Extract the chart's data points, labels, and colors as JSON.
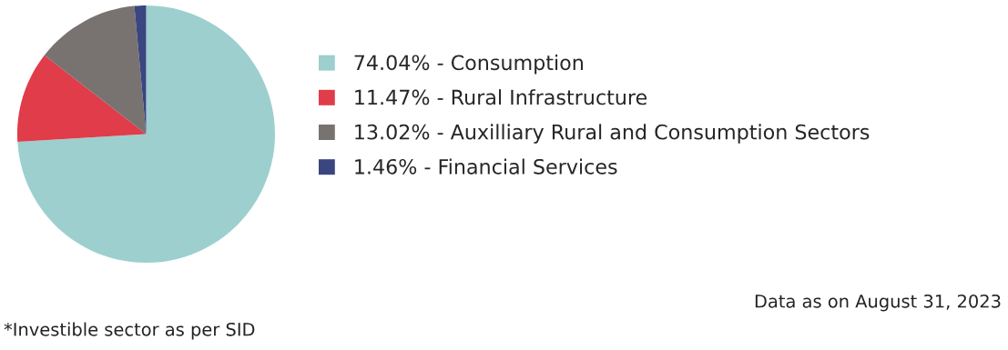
{
  "chart_data": {
    "type": "pie",
    "categories": [
      "74.04% - Consumption",
      "11.47% - Rural Infrastructure",
      "13.02% - Auxilliary Rural and Consumption Sectors",
      "1.46% - Financial Services"
    ],
    "values": [
      74.04,
      11.47,
      13.02,
      1.46
    ],
    "colors": [
      "#9dcfcf",
      "#e03c4a",
      "#787370",
      "#3b4580"
    ],
    "legend": "right",
    "annotations": [
      "Data as on August 31, 2023",
      "*Investible sector as per SID"
    ]
  }
}
